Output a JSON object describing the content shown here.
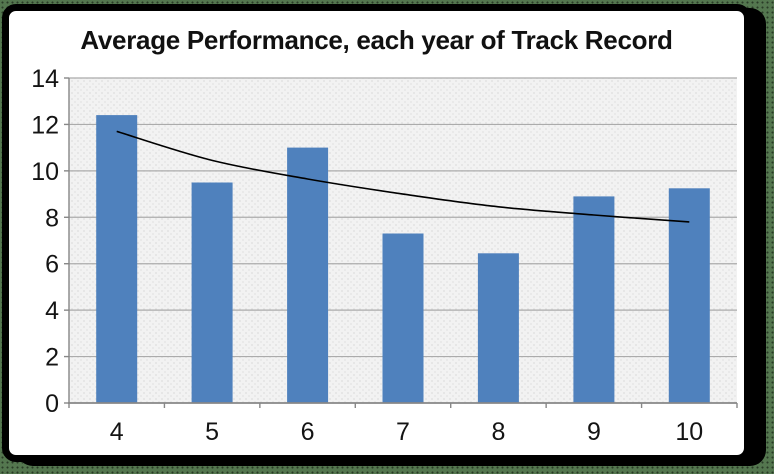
{
  "chart_data": {
    "type": "bar",
    "title": "Average Performance, each year of Track Record",
    "categories": [
      "4",
      "5",
      "6",
      "7",
      "8",
      "9",
      "10"
    ],
    "values": [
      12.4,
      9.5,
      11.0,
      7.3,
      6.45,
      8.9,
      9.25
    ],
    "trendline": {
      "shape": "smooth decreasing curve",
      "values_at_categories": [
        11.7,
        10.45,
        9.65,
        9.0,
        8.45,
        8.1,
        7.8
      ]
    },
    "y_axis": {
      "ticks": [
        0,
        2,
        4,
        6,
        8,
        10,
        12,
        14
      ],
      "range": [
        0,
        14
      ]
    },
    "x_axis": {
      "tick_labels": [
        "4",
        "5",
        "6",
        "7",
        "8",
        "9",
        "10"
      ]
    },
    "xlabel": "",
    "ylabel": "",
    "grid": true,
    "legend": "none",
    "colors": {
      "bar": "#4F81BD",
      "trendline": "#000000",
      "plot_background": "#F2F2F2",
      "gridline": "#ABABAB",
      "axis": "#878787",
      "label": "#141414",
      "title": "#111111",
      "frame_border": "#000000",
      "page_background": "#54774F"
    }
  }
}
